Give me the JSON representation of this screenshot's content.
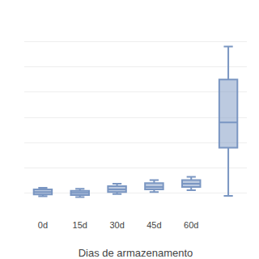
{
  "chart_data": {
    "type": "box",
    "xlabel": "Dias de armazenamento",
    "categories": [
      "0d",
      "15d",
      "30d",
      "45d",
      "60d",
      null
    ],
    "median": [
      1.05,
      1.02,
      1.15,
      1.25,
      1.38,
      3.8
    ],
    "q1": [
      0.95,
      0.93,
      1.05,
      1.15,
      1.25,
      2.8
    ],
    "q3": [
      1.15,
      1.1,
      1.28,
      1.4,
      1.52,
      5.5
    ],
    "whislo": [
      0.88,
      0.85,
      0.97,
      1.05,
      1.12,
      0.9
    ],
    "whishi": [
      1.22,
      1.18,
      1.38,
      1.52,
      1.65,
      6.8
    ],
    "color": "#7a96c2",
    "ylim": [
      0,
      8
    ],
    "yticks": [
      0,
      1,
      2,
      3,
      4,
      5,
      6,
      7,
      8
    ],
    "grid": true,
    "tick_labels": "x"
  }
}
